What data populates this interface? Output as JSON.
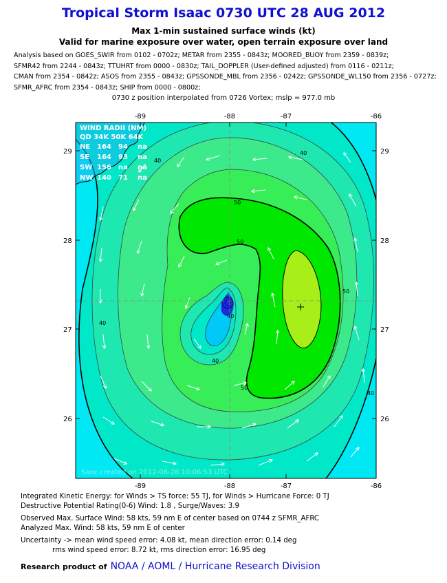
{
  "header": {
    "title": "Tropical Storm Isaac 0730 UTC 28 AUG 2012",
    "subtitle": "Max 1-min sustained surface winds (kt)",
    "subtitle2": "Valid for marine exposure over water, open terrain exposure over land",
    "analysis_lines": [
      "Analysis based on GOES_SWIR from 0102 - 0702z; METAR from 2355 - 0843z; MOORED_BUOY from 2359 - 0839z;",
      "SFMR42 from 2244 - 0843z; TTUHRT from 0000 - 0830z; TAIL_DOPPLER (User-defined adjusted) from 0116 - 0211z;",
      "CMAN from 2354 - 0842z; ASOS from 2355 - 0843z; GPSSONDE_MBL from 2356 - 0242z; GPSSONDE_WL150 from 2356 - 0727z;",
      "SFMR_AFRC from 2354 - 0843z; SHIP from 0000 - 0800z;"
    ],
    "position_note": "0730 z position interpolated from 0726 Vortex; mslp = 977.0 mb"
  },
  "map": {
    "lon_ticks": [
      "-89",
      "-88",
      "-87",
      "-86"
    ],
    "lat_ticks": [
      "29",
      "28",
      "27",
      "26"
    ],
    "contour_labels": [
      "40",
      "40",
      "50",
      "50",
      "50",
      "40",
      "40",
      "50",
      "40",
      "40"
    ],
    "colors": {
      "cyan_outer": "#00e8f4",
      "teal_30": "#00e8c8",
      "teal_35": "#1ee8b0",
      "green_40": "#3cea8c",
      "green_45": "#38ee58",
      "green_50": "#00e800",
      "lime_55": "#a8ee18",
      "inner_blue": "#00c8f8"
    },
    "wind_radii": {
      "header": "WIND RADII (NM)",
      "columns": "QD  34K  50K  64K",
      "rows": [
        {
          "quad": "NE",
          "r34": "164",
          "r50": "94",
          "r64": "na"
        },
        {
          "quad": "SE",
          "r34": "164",
          "r50": "93",
          "r64": "na"
        },
        {
          "quad": "SW",
          "r34": "156",
          "r50": "na",
          "r64": "na"
        },
        {
          "quad": "NW",
          "r34": "140",
          "r50": "71",
          "r64": "na"
        }
      ]
    },
    "watermark": "Saoc  created on 2012-08-28 10:06:53 UTC"
  },
  "footer": {
    "ike": "Integrated Kinetic Energy: for Winds > TS force: 55 TJ, for Winds > Hurricane Force: 0 TJ",
    "dpr": "Destructive Potential Rating(0-6)  Wind: 1.8 , Surge/Waves: 3.9",
    "observed": "Observed Max. Surface Wind: 58 kts, 59 nm E of center based on 0744 z SFMR_AFRC",
    "analyzed": "Analyzed Max. Wind: 58 kts, 59 nm  E of center",
    "uncertainty1": "Uncertainty -> mean wind speed error: 4.08 kt, mean direction error: 0.14 deg",
    "uncertainty2": "rms wind speed error: 8.72 kt, rms direction error: 16.95 deg",
    "product_label": "Research product of",
    "product_org": "NOAA / AOML / Hurricane Research Division"
  }
}
